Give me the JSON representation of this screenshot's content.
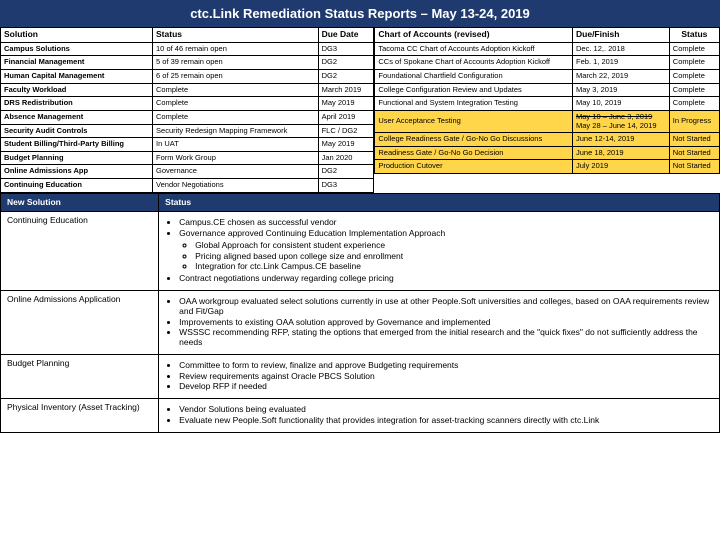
{
  "title": "ctc.Link Remediation Status Reports – May 13-24, 2019",
  "left": {
    "headers": [
      "Solution",
      "Status",
      "Due Date"
    ],
    "rows": [
      [
        "Campus Solutions",
        "10 of 46 remain open",
        "DG3"
      ],
      [
        "Financial Management",
        "5 of 39 remain open",
        "DG2"
      ],
      [
        "Human Capital Management",
        "6 of 25 remain open",
        "DG2"
      ],
      [
        "Faculty Workload",
        "Complete",
        "March 2019"
      ],
      [
        "DRS Redistribution",
        "Complete",
        "May 2019"
      ],
      [
        "Absence Management",
        "Complete",
        "April 2019"
      ],
      [
        "Security Audit Controls",
        "Security Redesign Mapping Framework",
        "FLC / DG2"
      ],
      [
        "Student Billing/Third-Party Billing",
        "In UAT",
        "May 2019"
      ],
      [
        "Budget Planning",
        "Form Work Group",
        "Jan 2020"
      ],
      [
        "Online Admissions App",
        "Governance",
        "DG2"
      ],
      [
        "Continuing Education",
        "Vendor Negotiations",
        "DG3"
      ]
    ]
  },
  "right": {
    "headers": [
      "Chart of Accounts (revised)",
      "Due/Finish",
      "Status"
    ],
    "rows": [
      {
        "c": [
          "Tacoma CC Chart of Accounts Adoption Kickoff",
          "Dec. 12,. 2018",
          "Complete"
        ]
      },
      {
        "c": [
          "CCs of Spokane Chart of Accounts Adoption Kickoff",
          "Feb. 1, 2019",
          "Complete"
        ]
      },
      {
        "c": [
          "Foundational Chartfield Configuration",
          "March 22, 2019",
          "Complete"
        ]
      },
      {
        "c": [
          "College Configuration Review and Updates",
          "May 3, 2019",
          "Complete"
        ]
      },
      {
        "c": [
          "Functional and System Integration Testing",
          "May 10, 2019",
          "Complete"
        ]
      },
      {
        "c": [
          "User Acceptance Testing",
          "",
          "In Progress"
        ],
        "y": true,
        "date_strike": "May 10 – June 3, 2019",
        "date2": "May 28 – June 14, 2019"
      },
      {
        "c": [
          "College Readiness Gate / Go-No Go Discussions",
          "June 12-14, 2019",
          "Not Started"
        ],
        "y": true
      },
      {
        "c": [
          "Readiness Gate / Go-No Go Decision",
          "June 18, 2019",
          "Not Started"
        ],
        "y": true
      },
      {
        "c": [
          "Production Cutover",
          "July 2019",
          "Not Started"
        ],
        "y": true
      }
    ]
  },
  "newsol": {
    "headers": [
      "New Solution",
      "Status"
    ],
    "rows": [
      {
        "name": "Continuing Education",
        "bullets": [
          "Campus.CE chosen as successful vendor",
          "Governance approved Continuing Education Implementation Approach",
          {
            "sub": [
              "Global Approach for consistent student experience",
              "Pricing aligned based upon college size and enrollment",
              "Integration for ctc.Link Campus.CE baseline"
            ]
          },
          "Contract negotiations underway regarding college pricing"
        ]
      },
      {
        "name": "Online Admissions Application",
        "bullets": [
          "OAA workgroup evaluated select solutions currently in use at other People.Soft universities and colleges, based on OAA requirements review and Fit/Gap",
          "Improvements to existing OAA solution approved by Governance and implemented",
          "WSSSC recommending RFP, stating the options that emerged from the initial research and the \"quick fixes\" do not sufficiently address the needs"
        ]
      },
      {
        "name": "Budget Planning",
        "bullets": [
          "Committee to form to review, finalize and approve Budgeting requirements",
          "Review requirements against Oracle PBCS Solution",
          "Develop RFP if needed"
        ]
      },
      {
        "name": "Physical Inventory (Asset Tracking)",
        "bullets": [
          "Vendor Solutions being evaluated",
          "Evaluate new People.Soft functionality that provides integration for asset-tracking scanners directly with ctc.Link"
        ]
      }
    ]
  },
  "colors": {
    "header_bg": "#1f3a6e",
    "highlight": "#ffd54a",
    "border": "#000000"
  }
}
